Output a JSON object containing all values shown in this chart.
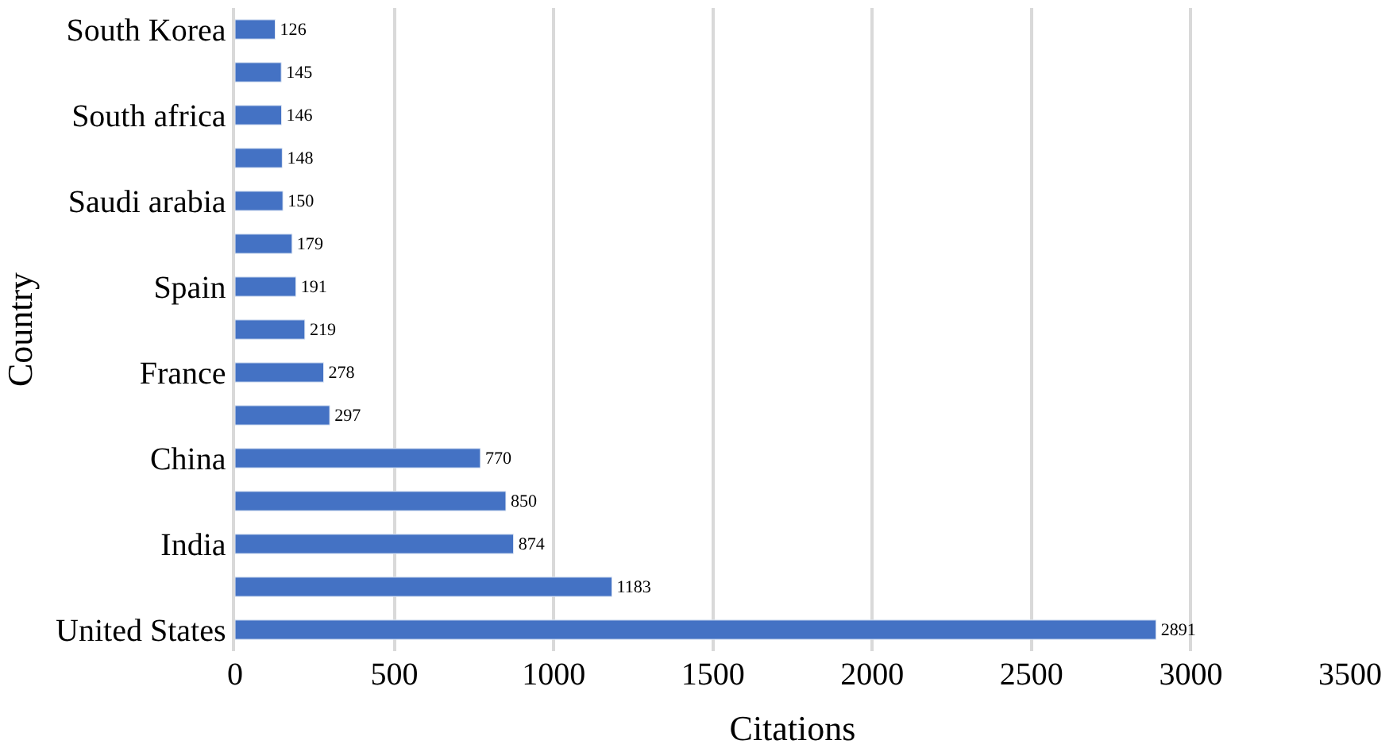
{
  "chart_data": {
    "type": "bar",
    "orientation": "horizontal",
    "xlabel": "Citations",
    "ylabel": "Country",
    "categories": [
      "South Korea",
      null,
      "South africa",
      null,
      "Saudi arabia",
      null,
      "Spain",
      null,
      "France",
      null,
      "China",
      null,
      "India",
      null,
      "United States"
    ],
    "values": [
      126,
      145,
      146,
      148,
      150,
      179,
      191,
      219,
      278,
      297,
      770,
      850,
      874,
      1183,
      2891
    ],
    "color": "#4472c4",
    "xlim": [
      0,
      3500
    ],
    "xticks": [
      0,
      500,
      1000,
      1500,
      2000,
      2500,
      3000,
      3500
    ],
    "grid": "x",
    "data_labels": true
  }
}
